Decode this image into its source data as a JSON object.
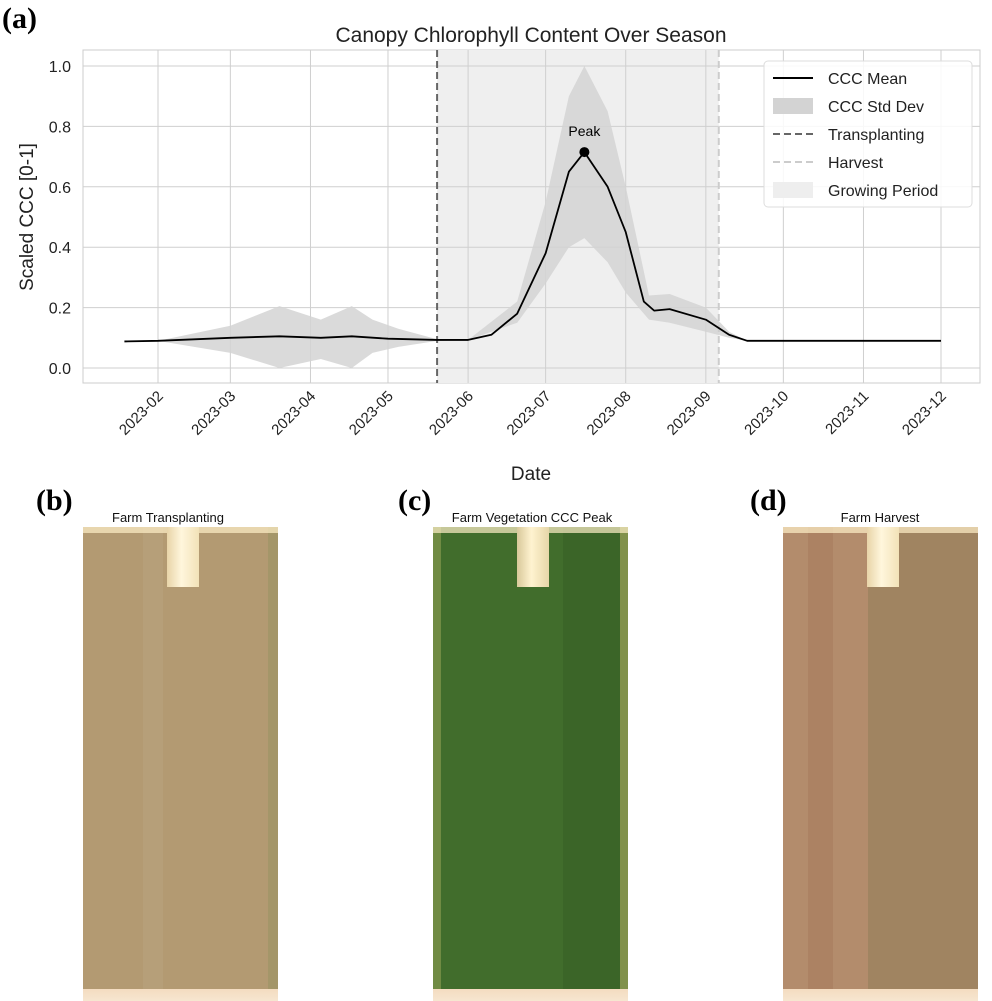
{
  "panel_labels": [
    "(a)",
    "(b)",
    "(c)",
    "(d)"
  ],
  "chart_data": {
    "type": "line",
    "title": "Canopy Chlorophyll Content Over Season",
    "xlabel": "Date",
    "ylabel": "Scaled CCC [0-1]",
    "xlim": [
      "2023-01-10",
      "2023-12-10"
    ],
    "ylim": [
      -0.05,
      1.05
    ],
    "grid": true,
    "legend_placement": "top-right",
    "x_ticks": [
      "2023-02",
      "2023-03",
      "2023-04",
      "2023-05",
      "2023-06",
      "2023-07",
      "2023-08",
      "2023-09",
      "2023-10",
      "2023-11",
      "2023-12"
    ],
    "y_ticks": [
      "0.0",
      "0.2",
      "0.4",
      "0.6",
      "0.8",
      "1.0"
    ],
    "series": [
      {
        "name": "CCC Mean",
        "color": "#000000",
        "x": [
          "2023-01-19",
          "2023-02-01",
          "2023-03-01",
          "2023-03-20",
          "2023-04-05",
          "2023-04-17",
          "2023-05-01",
          "2023-05-20",
          "2023-06-01",
          "2023-06-10",
          "2023-06-20",
          "2023-07-01",
          "2023-07-10",
          "2023-07-16",
          "2023-07-25",
          "2023-08-01",
          "2023-08-08",
          "2023-08-12",
          "2023-08-18",
          "2023-09-01",
          "2023-09-10",
          "2023-09-17",
          "2023-10-01",
          "2023-12-01"
        ],
        "values": [
          0.088,
          0.09,
          0.1,
          0.105,
          0.1,
          0.105,
          0.097,
          0.093,
          0.093,
          0.11,
          0.18,
          0.38,
          0.65,
          0.715,
          0.6,
          0.45,
          0.22,
          0.19,
          0.195,
          0.16,
          0.11,
          0.09,
          0.09,
          0.09
        ]
      },
      {
        "name": "CCC Std Dev",
        "color": "#d3d3d3",
        "x": [
          "2023-01-19",
          "2023-02-01",
          "2023-03-01",
          "2023-03-20",
          "2023-04-05",
          "2023-04-17",
          "2023-04-25",
          "2023-05-05",
          "2023-05-20",
          "2023-06-01",
          "2023-06-20",
          "2023-07-01",
          "2023-07-10",
          "2023-07-16",
          "2023-07-25",
          "2023-08-01",
          "2023-08-10",
          "2023-08-18",
          "2023-09-01",
          "2023-09-10",
          "2023-09-17"
        ],
        "lower": [
          0.088,
          0.09,
          0.05,
          0.0,
          0.03,
          0.0,
          0.05,
          0.07,
          0.09,
          0.093,
          0.15,
          0.28,
          0.4,
          0.43,
          0.35,
          0.25,
          0.16,
          0.15,
          0.12,
          0.1,
          0.09
        ],
        "upper": [
          0.088,
          0.09,
          0.14,
          0.205,
          0.16,
          0.205,
          0.16,
          0.13,
          0.095,
          0.093,
          0.22,
          0.55,
          0.9,
          1.0,
          0.85,
          0.6,
          0.24,
          0.245,
          0.2,
          0.12,
          0.09
        ]
      }
    ],
    "events": [
      {
        "name": "Transplanting",
        "date": "2023-05-20",
        "color": "#666666",
        "style": "dashed"
      },
      {
        "name": "Harvest",
        "date": "2023-09-06",
        "color": "#cccccc",
        "style": "dashed"
      }
    ],
    "shaded_region": {
      "name": "Growing Period",
      "start": "2023-05-20",
      "end": "2023-09-06",
      "color": "#efefef"
    },
    "annotation": {
      "text": "Peak",
      "date": "2023-07-16",
      "value": 0.715
    },
    "legend": [
      "CCC Mean",
      "CCC Std Dev",
      "Transplanting",
      "Harvest",
      "Growing Period"
    ]
  },
  "images": [
    {
      "title": "Farm Transplanting",
      "base_color": "#b39a72"
    },
    {
      "title": "Farm Vegetation CCC Peak",
      "base_color": "#416d2c"
    },
    {
      "title": "Farm Harvest",
      "base_color": "#b38c6c"
    }
  ]
}
